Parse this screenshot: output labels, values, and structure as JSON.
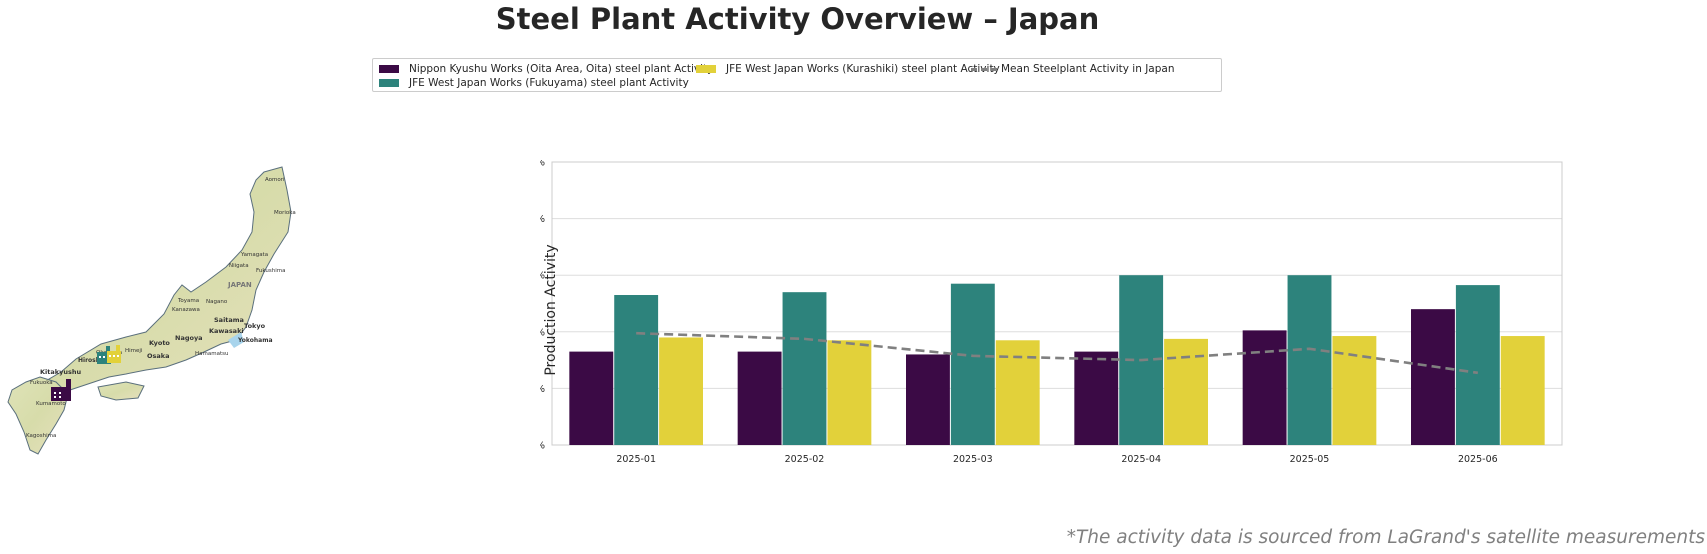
{
  "title": "Steel Plant Activity Overview – Japan",
  "footnote": "*The activity data is sourced from LaGrand's satellite measurements",
  "legend": {
    "items": [
      {
        "label": "Nippon Kyushu Works (Oita Area, Oita) steel plant Activity",
        "color": "#3b0a45"
      },
      {
        "label": "JFE West Japan Works (Fukuyama) steel plant Activity",
        "color": "#2d837c"
      },
      {
        "label": "JFE West Japan Works (Kurashiki) steel plant Activity",
        "color": "#e2d13a"
      },
      {
        "label": "Mean Steelplant Activity in Japan",
        "color": "#808080"
      }
    ]
  },
  "map": {
    "labels": [
      "Aomori",
      "Morioka",
      "Yamagata",
      "Niigata",
      "Fukushima",
      "JAPAN",
      "Toyama",
      "Nagano",
      "Kanazawa",
      "Saitama",
      "Kawasaki",
      "Tokyo",
      "Yokohama",
      "Nagoya",
      "Kyoto",
      "Osaka",
      "Hamamatsu",
      "Himeji",
      "Okayama",
      "Hiroshima",
      "Kitakyushu",
      "Fukuoka",
      "Kumamoto",
      "Kagoshima"
    ],
    "markers": [
      {
        "plant": "Nippon Kyushu Works (Oita Area, Oita)",
        "color": "#3b0a45",
        "icon": "factory-icon"
      },
      {
        "plant": "JFE West Japan Works (Fukuyama)",
        "color": "#2d837c",
        "icon": "factory-icon"
      },
      {
        "plant": "JFE West Japan Works (Kurashiki)",
        "color": "#e2d13a",
        "icon": "factory-icon"
      }
    ]
  },
  "chart_data": {
    "type": "bar",
    "title": "",
    "xlabel": "",
    "ylabel": "Production Activity",
    "ylim": [
      0,
      100
    ],
    "yticks": [
      "0%",
      "20%",
      "40%",
      "60%",
      "80%",
      "100%"
    ],
    "grid": "horizontal",
    "categories": [
      "2025-01",
      "2025-02",
      "2025-03",
      "2025-04",
      "2025-05",
      "2025-06"
    ],
    "series": [
      {
        "name": "Nippon Kyushu Works (Oita Area, Oita) steel plant Activity",
        "type": "bar",
        "color": "#3b0a45",
        "values": [
          33,
          33,
          32,
          33,
          40.5,
          48
        ]
      },
      {
        "name": "JFE West Japan Works (Fukuyama) steel plant Activity",
        "type": "bar",
        "color": "#2d837c",
        "values": [
          53,
          54,
          57,
          60,
          60,
          56.5
        ]
      },
      {
        "name": "JFE West Japan Works (Kurashiki) steel plant Activity",
        "type": "bar",
        "color": "#e2d13a",
        "values": [
          38,
          37,
          37,
          37.5,
          38.5,
          38.5
        ]
      },
      {
        "name": "Mean Steelplant Activity in Japan",
        "type": "line",
        "style": "dashed",
        "color": "#808080",
        "values": [
          39.5,
          37.5,
          31.5,
          30,
          34,
          25.5
        ]
      }
    ]
  }
}
